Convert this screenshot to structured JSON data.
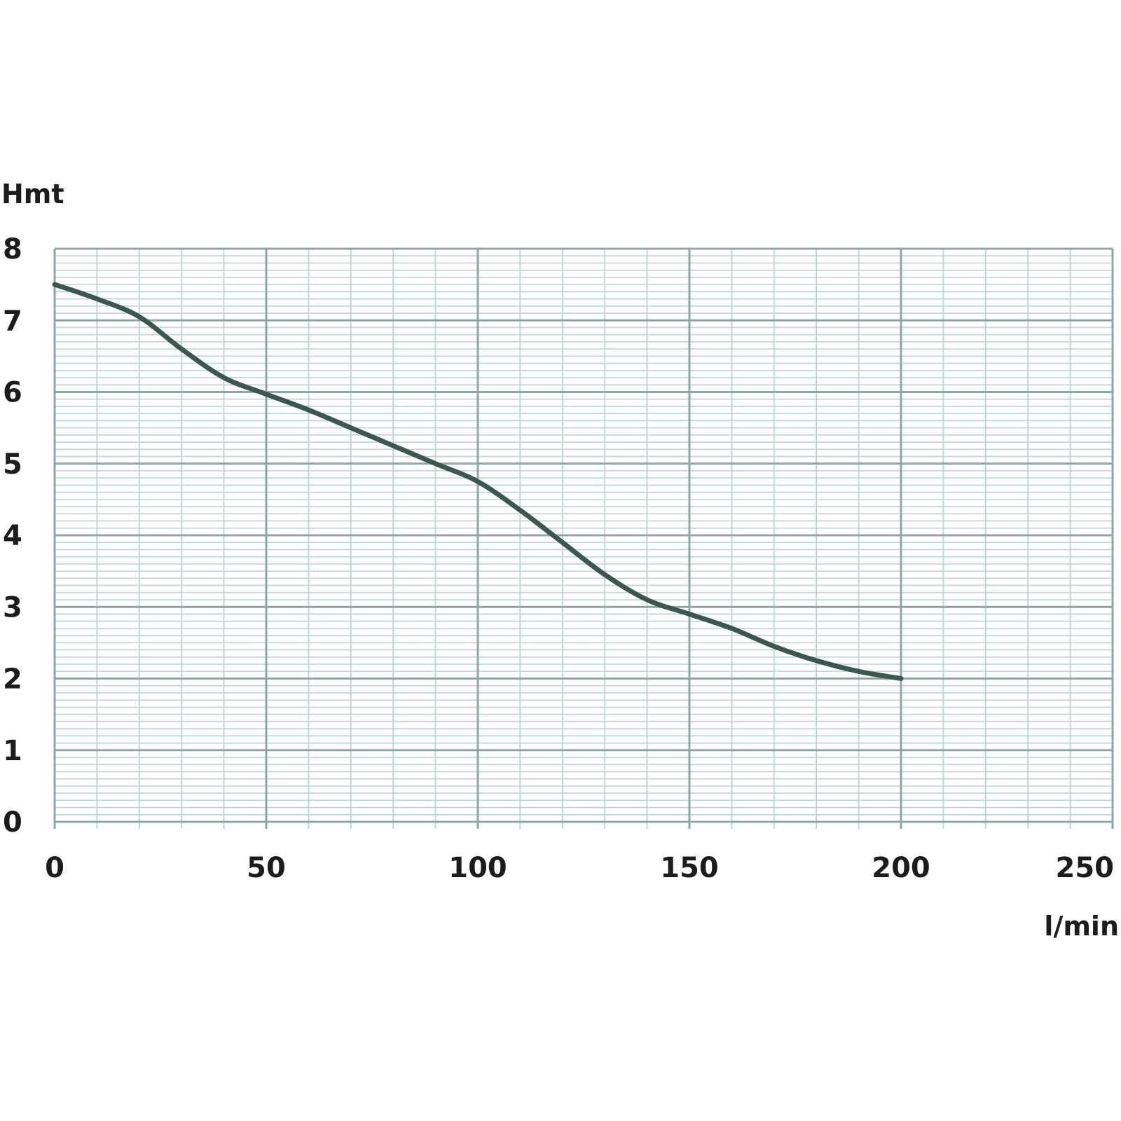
{
  "chart_data": {
    "type": "line",
    "title": "",
    "xlabel": "l/min",
    "ylabel": "Hmt",
    "xlim": [
      0,
      250
    ],
    "ylim": [
      0,
      8
    ],
    "xticks": [
      0,
      50,
      100,
      150,
      200,
      250
    ],
    "yticks": [
      0,
      1,
      2,
      3,
      4,
      5,
      6,
      7,
      8
    ],
    "grid": true,
    "legend": "none",
    "colors": {
      "line": "#3b5750",
      "grid_major": "#8fa6a8",
      "grid_minor": "#bcd3d6",
      "text": "#1c1c1c"
    },
    "series": [
      {
        "x": [
          0,
          10,
          20,
          30,
          40,
          50,
          60,
          70,
          80,
          90,
          100,
          110,
          120,
          130,
          140,
          150,
          160,
          170,
          180,
          190,
          200
        ],
        "values": [
          7.5,
          7.3,
          7.05,
          6.6,
          6.2,
          5.97,
          5.75,
          5.5,
          5.25,
          5.0,
          4.75,
          4.35,
          3.9,
          3.45,
          3.1,
          2.9,
          2.7,
          2.45,
          2.25,
          2.1,
          2.0
        ]
      }
    ]
  }
}
